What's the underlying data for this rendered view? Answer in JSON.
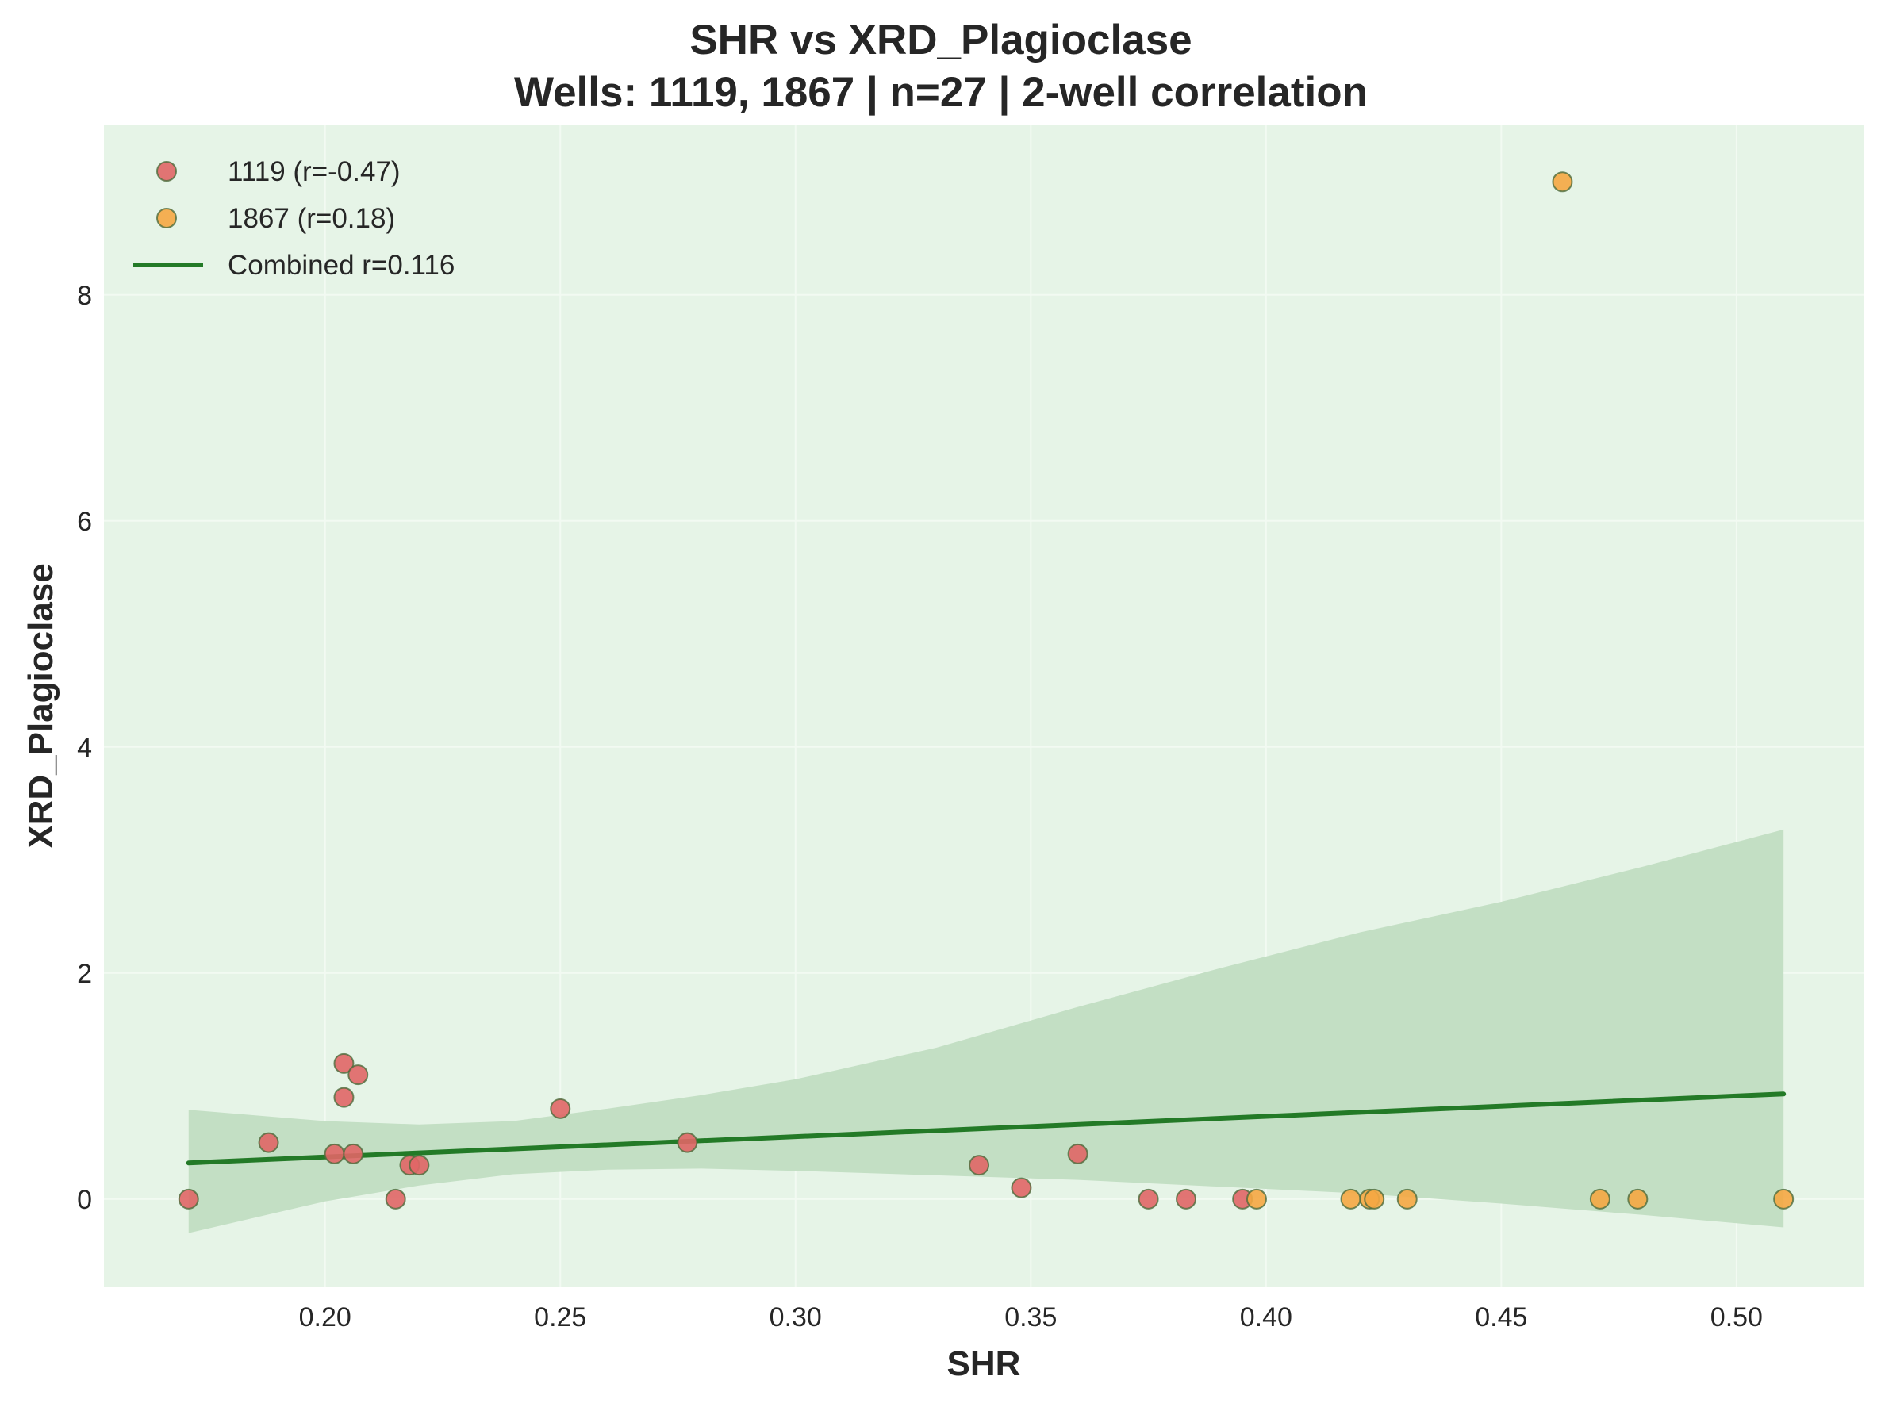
{
  "chart_data": {
    "type": "scatter",
    "title": "SHR vs XRD_Plagioclase",
    "subtitle": "Wells: 1119, 1867 | n=27 | 2-well correlation",
    "xlabel": "SHR",
    "ylabel": "XRD_Plagioclase",
    "xlim": [
      0.153,
      0.527
    ],
    "ylim": [
      -0.78,
      9.5
    ],
    "x_ticks": [
      0.2,
      0.25,
      0.3,
      0.35,
      0.4,
      0.45,
      0.5
    ],
    "x_tick_labels": [
      "0.20",
      "0.25",
      "0.30",
      "0.35",
      "0.40",
      "0.45",
      "0.50"
    ],
    "y_ticks": [
      0,
      2,
      4,
      6,
      8
    ],
    "y_tick_labels": [
      "0",
      "2",
      "4",
      "6",
      "8"
    ],
    "grid": true,
    "legend_position": "top-left",
    "plot_background": "#e6f4e7",
    "series": [
      {
        "name": "1119 (r=-0.47)",
        "kind": "scatter",
        "color": "#e06666",
        "points": [
          {
            "x": 0.171,
            "y": 0.0
          },
          {
            "x": 0.188,
            "y": 0.5
          },
          {
            "x": 0.202,
            "y": 0.4
          },
          {
            "x": 0.204,
            "y": 1.2
          },
          {
            "x": 0.204,
            "y": 0.9
          },
          {
            "x": 0.206,
            "y": 0.4
          },
          {
            "x": 0.207,
            "y": 1.1
          },
          {
            "x": 0.215,
            "y": 0.0
          },
          {
            "x": 0.218,
            "y": 0.3
          },
          {
            "x": 0.22,
            "y": 0.3
          },
          {
            "x": 0.25,
            "y": 0.8
          },
          {
            "x": 0.277,
            "y": 0.5
          },
          {
            "x": 0.339,
            "y": 0.3
          },
          {
            "x": 0.348,
            "y": 0.1
          },
          {
            "x": 0.36,
            "y": 0.4
          },
          {
            "x": 0.375,
            "y": 0.0
          },
          {
            "x": 0.383,
            "y": 0.0
          },
          {
            "x": 0.395,
            "y": 0.0
          }
        ]
      },
      {
        "name": "1867 (r=0.18)",
        "kind": "scatter",
        "color": "#f5a742",
        "points": [
          {
            "x": 0.398,
            "y": 0.0
          },
          {
            "x": 0.418,
            "y": 0.0
          },
          {
            "x": 0.422,
            "y": 0.0
          },
          {
            "x": 0.423,
            "y": 0.0
          },
          {
            "x": 0.43,
            "y": 0.0
          },
          {
            "x": 0.463,
            "y": 9.0
          },
          {
            "x": 0.471,
            "y": 0.0
          },
          {
            "x": 0.479,
            "y": 0.0
          },
          {
            "x": 0.51,
            "y": 0.0
          }
        ]
      },
      {
        "name": "Combined r=0.116",
        "kind": "line",
        "color": "#237a27",
        "points": [
          {
            "x": 0.171,
            "y": 0.32
          },
          {
            "x": 0.51,
            "y": 0.93
          }
        ]
      }
    ],
    "confidence_band": {
      "color": "#c3dfc4",
      "x": [
        0.171,
        0.2,
        0.22,
        0.24,
        0.26,
        0.28,
        0.3,
        0.33,
        0.36,
        0.39,
        0.42,
        0.45,
        0.48,
        0.51
      ],
      "lower": [
        -0.3,
        -0.02,
        0.12,
        0.22,
        0.26,
        0.27,
        0.25,
        0.21,
        0.17,
        0.11,
        0.05,
        -0.04,
        -0.14,
        -0.25
      ],
      "upper": [
        0.79,
        0.69,
        0.66,
        0.69,
        0.8,
        0.92,
        1.06,
        1.34,
        1.7,
        2.04,
        2.36,
        2.63,
        2.94,
        3.27
      ]
    }
  }
}
